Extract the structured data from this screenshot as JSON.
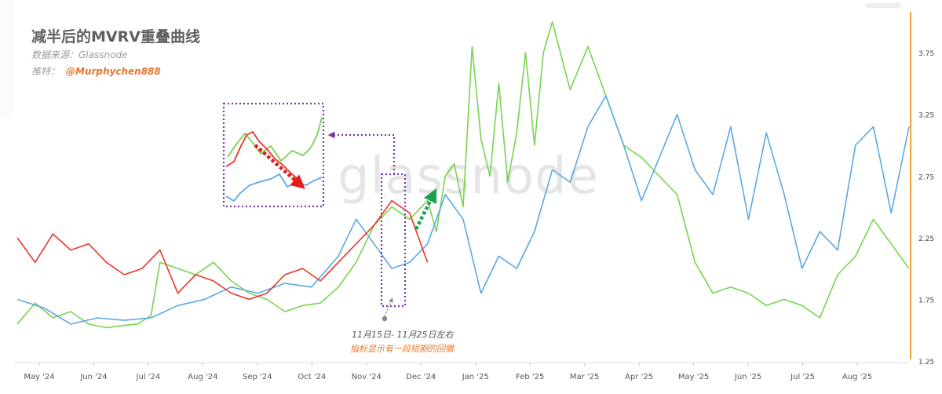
{
  "header": {
    "title": "减半后的MVRV重叠曲线",
    "source": "数据来源：Glassnode",
    "credit_prefix": "推特：",
    "credit_handle": "@Murphychen888"
  },
  "watermark": "glassnode",
  "annotations": {
    "date_range": "11月15日- 11月25日左右",
    "note": "指标显示有一段短期的回撤"
  },
  "colors": {
    "green": "#77d44f",
    "blue": "#5ba8e4",
    "red": "#e8352a",
    "axis_orange": "#f0a33a",
    "box_purple": "#7a35a8",
    "arrow_red": "#e31b1b",
    "arrow_green": "#1aa44f"
  },
  "chart_data": {
    "type": "line",
    "x_tick_labels": [
      "May '24",
      "Jun '24",
      "Jul '24",
      "Aug '24",
      "Sep '24",
      "Oct '24",
      "Nov '24",
      "Dec '24",
      "Jan '25",
      "Feb '25",
      "Mar '25",
      "Apr '25",
      "May '25",
      "Jun '25",
      "Jul '25",
      "Aug '25"
    ],
    "y_ticks": [
      1.25,
      1.75,
      2.25,
      2.75,
      3.25,
      3.75
    ],
    "ylim": [
      1.25,
      4.05
    ],
    "grid": false,
    "series": [
      {
        "color": "green",
        "x": [
          0.0,
          0.02,
          0.04,
          0.06,
          0.08,
          0.1,
          0.12,
          0.135,
          0.15,
          0.16,
          0.18,
          0.2,
          0.22,
          0.24,
          0.26,
          0.28,
          0.3,
          0.32,
          0.34,
          0.36,
          0.38,
          0.4,
          0.42,
          0.44,
          0.46,
          0.47,
          0.48,
          0.49,
          0.5,
          0.51,
          0.52,
          0.53,
          0.54,
          0.55,
          0.56,
          0.57,
          0.58,
          0.59,
          0.6,
          0.62,
          0.64,
          0.66,
          0.68,
          0.7,
          0.72,
          0.74,
          0.76,
          0.78,
          0.8,
          0.82,
          0.84,
          0.86,
          0.88,
          0.9,
          0.92,
          0.94,
          0.96,
          0.98,
          1.0
        ],
        "y": [
          1.55,
          1.72,
          1.6,
          1.65,
          1.55,
          1.52,
          1.54,
          1.55,
          1.62,
          2.05,
          2.0,
          1.95,
          2.05,
          1.9,
          1.8,
          1.75,
          1.65,
          1.7,
          1.72,
          1.85,
          2.05,
          2.35,
          2.5,
          2.4,
          2.55,
          2.3,
          2.75,
          2.85,
          2.5,
          3.8,
          3.05,
          2.75,
          3.5,
          2.7,
          3.1,
          3.75,
          3.0,
          3.75,
          4.0,
          3.45,
          3.8,
          3.4,
          3.0,
          2.9,
          2.75,
          2.6,
          2.05,
          1.8,
          1.85,
          1.8,
          1.7,
          1.75,
          1.7,
          1.6,
          1.95,
          2.1,
          2.4,
          2.2,
          2.0
        ]
      },
      {
        "color": "blue",
        "x": [
          0.0,
          0.03,
          0.06,
          0.09,
          0.12,
          0.15,
          0.18,
          0.21,
          0.24,
          0.27,
          0.3,
          0.33,
          0.36,
          0.38,
          0.4,
          0.42,
          0.44,
          0.46,
          0.48,
          0.5,
          0.52,
          0.54,
          0.56,
          0.58,
          0.6,
          0.62,
          0.64,
          0.66,
          0.68,
          0.7,
          0.72,
          0.74,
          0.76,
          0.78,
          0.8,
          0.82,
          0.84,
          0.86,
          0.88,
          0.9,
          0.92,
          0.94,
          0.96,
          0.98,
          1.0
        ],
        "y": [
          1.75,
          1.68,
          1.55,
          1.6,
          1.58,
          1.6,
          1.7,
          1.75,
          1.85,
          1.8,
          1.88,
          1.85,
          2.1,
          2.4,
          2.2,
          2.0,
          2.05,
          2.2,
          2.6,
          2.4,
          1.8,
          2.1,
          2.0,
          2.3,
          2.8,
          2.7,
          3.15,
          3.4,
          3.0,
          2.55,
          2.9,
          3.25,
          2.8,
          2.6,
          3.15,
          2.4,
          3.1,
          2.6,
          2.0,
          2.3,
          2.15,
          3.0,
          3.15,
          2.45,
          3.15
        ]
      },
      {
        "color": "red",
        "x": [
          0.0,
          0.02,
          0.04,
          0.06,
          0.08,
          0.1,
          0.12,
          0.14,
          0.16,
          0.18,
          0.2,
          0.22,
          0.24,
          0.26,
          0.28,
          0.3,
          0.32,
          0.34,
          0.36,
          0.38,
          0.4,
          0.42,
          0.44,
          0.46
        ],
        "y": [
          2.25,
          2.05,
          2.28,
          2.15,
          2.2,
          2.05,
          1.95,
          2.0,
          2.15,
          1.8,
          1.95,
          1.9,
          1.8,
          1.75,
          1.8,
          1.95,
          2.0,
          1.9,
          2.05,
          2.2,
          2.35,
          2.55,
          2.45,
          2.05
        ]
      }
    ]
  }
}
